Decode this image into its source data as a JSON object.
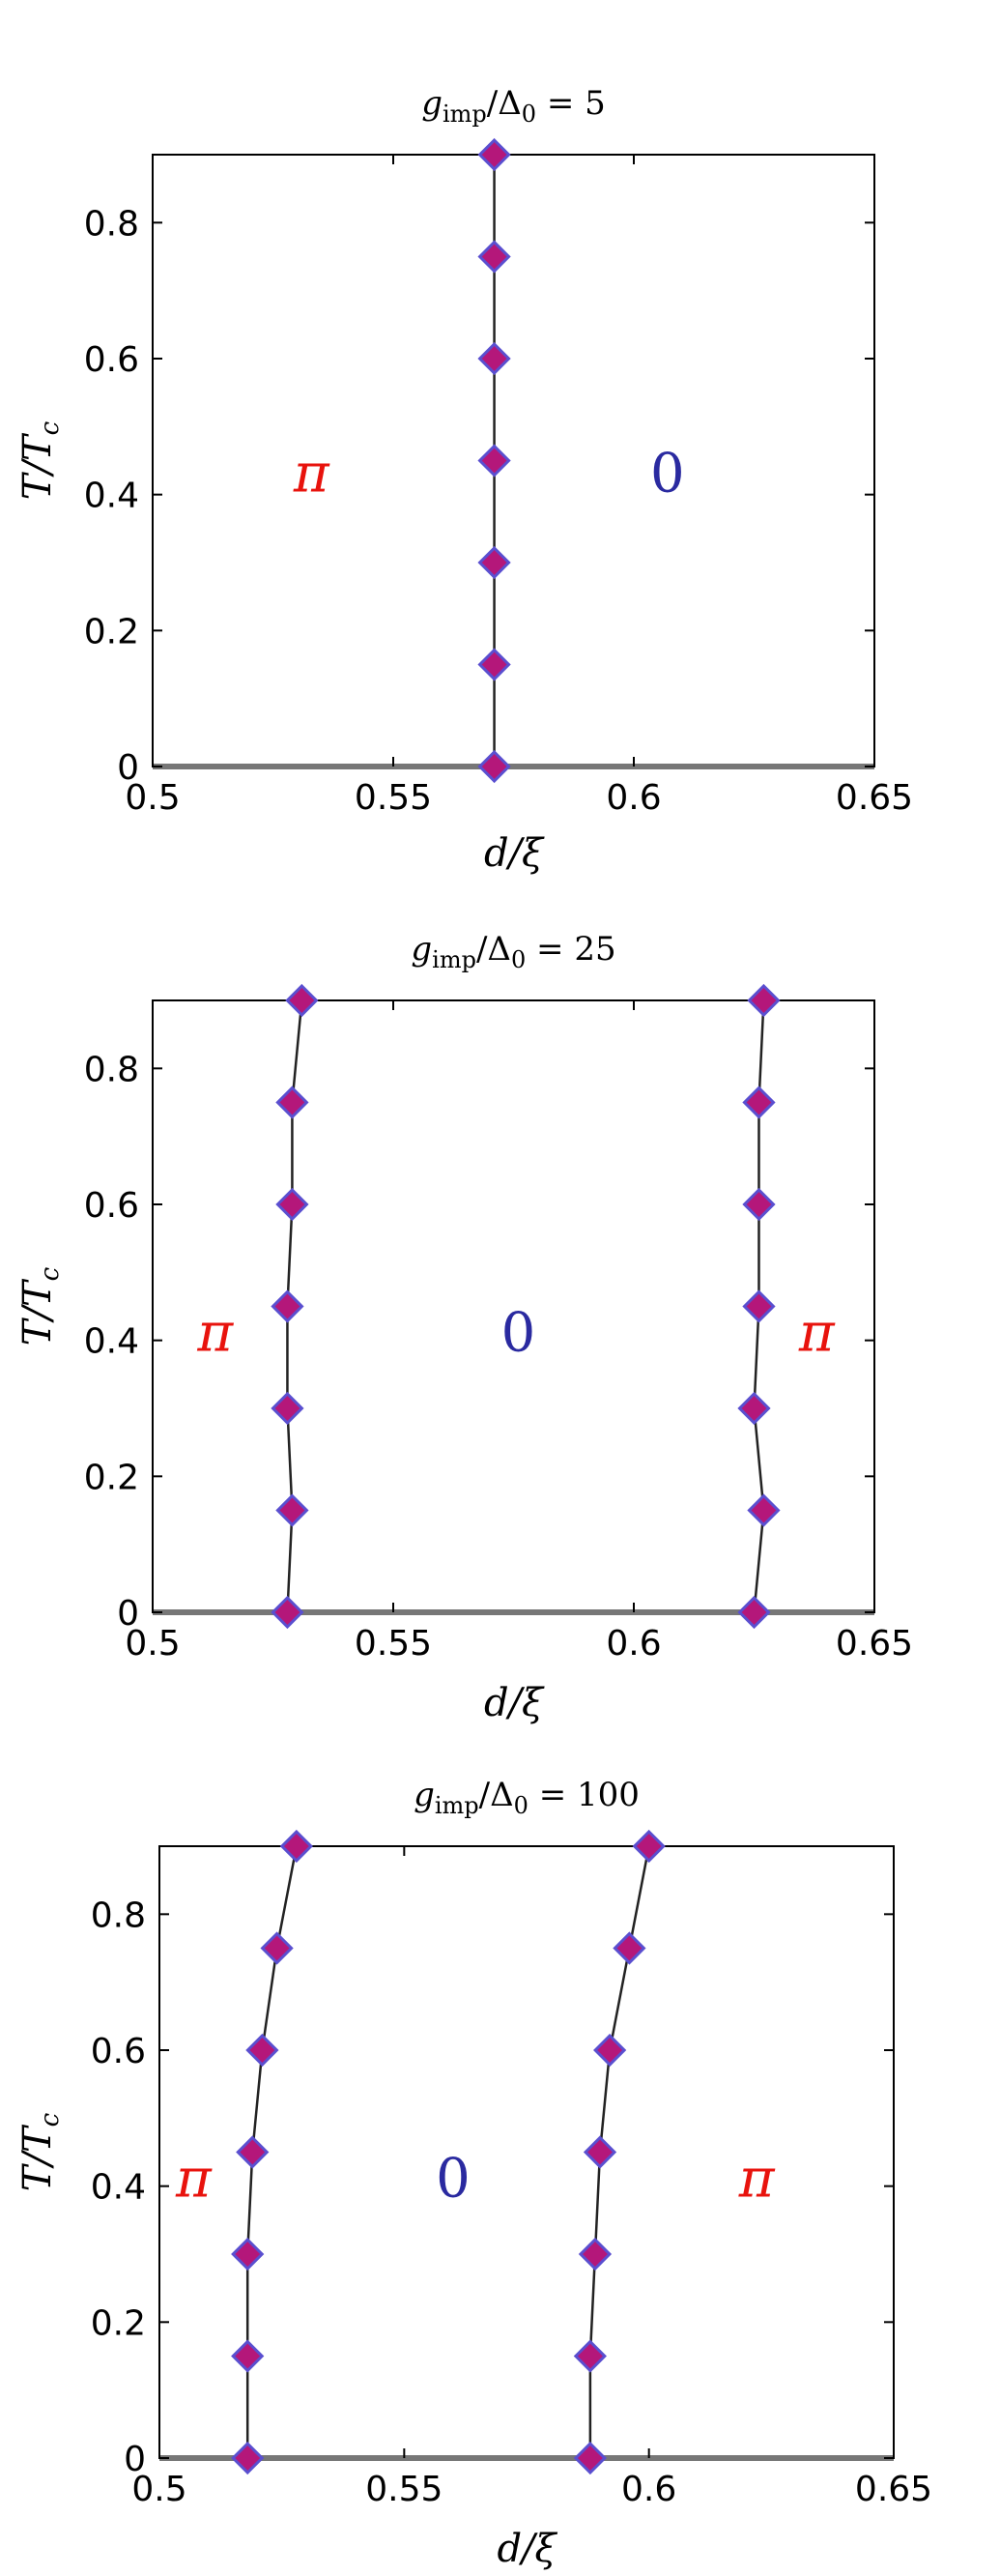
{
  "colors": {
    "pi_label": "#e8130d",
    "zero_label": "#2a2aa0",
    "marker_fill": "#b4177a",
    "marker_edge": "#5a4fd0",
    "line": "#222222"
  },
  "chart_data": [
    {
      "type": "scatter",
      "title": "g_imp/Δ0 = 5",
      "xlabel": "d/ξ",
      "ylabel": "T/Tc",
      "xlim": [
        0.5,
        0.65
      ],
      "ylim": [
        0,
        0.9
      ],
      "xticks": [
        "0.5",
        "0.55",
        "0.6",
        "0.65"
      ],
      "yticks": [
        "0",
        "0.2",
        "0.4",
        "0.6",
        "0.8"
      ],
      "series": [
        {
          "x": [
            0.571,
            0.571,
            0.571,
            0.571,
            0.571,
            0.571,
            0.571
          ],
          "y": [
            0,
            0.15,
            0.3,
            0.45,
            0.6,
            0.75,
            0.9
          ]
        }
      ],
      "annotations": [
        {
          "text": "π",
          "x": 0.533,
          "y": 0.43,
          "kind": "pi"
        },
        {
          "text": "0",
          "x": 0.607,
          "y": 0.43,
          "kind": "zero"
        }
      ]
    },
    {
      "type": "scatter",
      "title": "g_imp/Δ0 = 25",
      "xlabel": "d/ξ",
      "ylabel": "T/Tc",
      "xlim": [
        0.5,
        0.65
      ],
      "ylim": [
        0,
        0.9
      ],
      "xticks": [
        "0.5",
        "0.55",
        "0.6",
        "0.65"
      ],
      "yticks": [
        "0",
        "0.2",
        "0.4",
        "0.6",
        "0.8"
      ],
      "series": [
        {
          "x": [
            0.528,
            0.529,
            0.528,
            0.528,
            0.529,
            0.529,
            0.531
          ],
          "y": [
            0,
            0.15,
            0.3,
            0.45,
            0.6,
            0.75,
            0.9
          ]
        },
        {
          "x": [
            0.625,
            0.627,
            0.625,
            0.626,
            0.626,
            0.626,
            0.627
          ],
          "y": [
            0,
            0.15,
            0.3,
            0.45,
            0.6,
            0.75,
            0.9
          ]
        }
      ],
      "annotations": [
        {
          "text": "π",
          "x": 0.513,
          "y": 0.41,
          "kind": "pi"
        },
        {
          "text": "0",
          "x": 0.576,
          "y": 0.41,
          "kind": "zero"
        },
        {
          "text": "π",
          "x": 0.638,
          "y": 0.41,
          "kind": "pi"
        }
      ]
    },
    {
      "type": "scatter",
      "title": "g_imp/Δ0 = 100",
      "xlabel": "d/ξ",
      "ylabel": "T/Tc",
      "xlim": [
        0.5,
        0.65
      ],
      "ylim": [
        0,
        0.9
      ],
      "xticks": [
        "0.5",
        "0.55",
        "0.6",
        "0.65"
      ],
      "yticks": [
        "0",
        "0.2",
        "0.4",
        "0.6",
        "0.8"
      ],
      "series": [
        {
          "x": [
            0.518,
            0.518,
            0.518,
            0.519,
            0.521,
            0.524,
            0.528
          ],
          "y": [
            0,
            0.15,
            0.3,
            0.45,
            0.6,
            0.75,
            0.9
          ]
        },
        {
          "x": [
            0.588,
            0.588,
            0.589,
            0.59,
            0.592,
            0.596,
            0.6
          ],
          "y": [
            0,
            0.15,
            0.3,
            0.45,
            0.6,
            0.75,
            0.9
          ]
        }
      ],
      "annotations": [
        {
          "text": "π",
          "x": 0.507,
          "y": 0.41,
          "kind": "pi"
        },
        {
          "text": "0",
          "x": 0.56,
          "y": 0.41,
          "kind": "zero"
        },
        {
          "text": "π",
          "x": 0.622,
          "y": 0.41,
          "kind": "pi"
        }
      ]
    }
  ]
}
